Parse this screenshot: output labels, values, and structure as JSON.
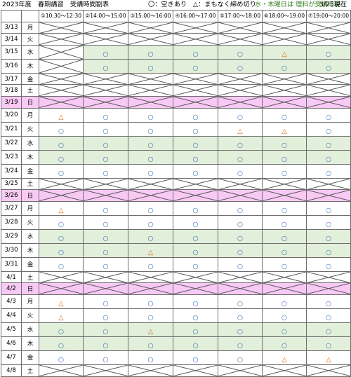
{
  "header": {
    "title": "2023年度　春期講習　受講時間割表",
    "legend_open": "〇：空きあり",
    "legend_few": "△：まもなく締め切り",
    "note": "水・木曜日は 理科が受講可能",
    "asof": "3/25現在"
  },
  "columns": [
    "①10:30～12:30",
    "②14:00～15:00",
    "③15:00～16:00",
    "④16:00～17:00",
    "⑤17:00～18:00",
    "⑥18:00～19:00",
    "⑦19:00～20:00"
  ],
  "colors": {
    "open_circle": "#3d6fb3",
    "few_triangle": "#d26d1c",
    "green_row": "#e2efda",
    "pink_row": "#f8c9f4",
    "note": "#2f7d1c"
  },
  "rows": [
    {
      "date": "3/13",
      "dow": "月",
      "type": "x",
      "cells": [
        "X",
        "X",
        "X",
        "X",
        "X",
        "X",
        "X"
      ]
    },
    {
      "date": "3/14",
      "dow": "火",
      "type": "x",
      "cells": [
        "X",
        "X",
        "X",
        "X",
        "X",
        "X",
        "X"
      ]
    },
    {
      "date": "3/15",
      "dow": "水",
      "type": "green",
      "cells": [
        "X",
        "○",
        "○",
        "○",
        "○",
        "△",
        "○"
      ]
    },
    {
      "date": "3/16",
      "dow": "木",
      "type": "green",
      "cells": [
        "X",
        "○",
        "○",
        "○",
        "○",
        "○",
        "○"
      ]
    },
    {
      "date": "3/17",
      "dow": "金",
      "type": "x",
      "cells": [
        "X",
        "X",
        "X",
        "X",
        "X",
        "X",
        "X"
      ]
    },
    {
      "date": "3/18",
      "dow": "土",
      "type": "x",
      "cells": [
        "X",
        "X",
        "X",
        "X",
        "X",
        "X",
        "X"
      ]
    },
    {
      "date": "3/19",
      "dow": "日",
      "type": "pink",
      "cells": [
        "X",
        "X",
        "X",
        "X",
        "X",
        "X",
        "X"
      ]
    },
    {
      "date": "3/20",
      "dow": "月",
      "type": "normal",
      "cells": [
        "△",
        "○",
        "○",
        "○",
        "○",
        "○",
        "○"
      ]
    },
    {
      "date": "3/21",
      "dow": "火",
      "type": "normal",
      "cells": [
        "○",
        "○",
        "○",
        "○",
        "△",
        "△",
        "○"
      ]
    },
    {
      "date": "3/22",
      "dow": "水",
      "type": "green",
      "cells": [
        "○",
        "○",
        "○",
        "○",
        "○",
        "○",
        "○"
      ]
    },
    {
      "date": "3/23",
      "dow": "木",
      "type": "green",
      "cells": [
        "○",
        "○",
        "○",
        "○",
        "○",
        "○",
        "○"
      ]
    },
    {
      "date": "3/24",
      "dow": "金",
      "type": "normal",
      "cells": [
        "○",
        "○",
        "○",
        "○",
        "○",
        "○",
        "○"
      ]
    },
    {
      "date": "3/25",
      "dow": "土",
      "type": "x",
      "cells": [
        "X",
        "X",
        "X",
        "X",
        "X",
        "X",
        "X"
      ]
    },
    {
      "date": "3/26",
      "dow": "日",
      "type": "pink",
      "cells": [
        "X",
        "X",
        "X",
        "X",
        "X",
        "X",
        "X"
      ]
    },
    {
      "date": "3/27",
      "dow": "月",
      "type": "normal",
      "cells": [
        "△",
        "○",
        "○",
        "○",
        "○",
        "○",
        "○"
      ]
    },
    {
      "date": "3/28",
      "dow": "火",
      "type": "normal",
      "cells": [
        "○",
        "○",
        "○",
        "○",
        "○",
        "○",
        "○"
      ]
    },
    {
      "date": "3/29",
      "dow": "水",
      "type": "green",
      "cells": [
        "○",
        "○",
        "○",
        "○",
        "○",
        "○",
        "○"
      ]
    },
    {
      "date": "3/30",
      "dow": "木",
      "type": "green",
      "cells": [
        "○",
        "○",
        "△",
        "○",
        "○",
        "○",
        "○"
      ]
    },
    {
      "date": "3/31",
      "dow": "金",
      "type": "normal",
      "cells": [
        "○",
        "○",
        "○",
        "○",
        "○",
        "○",
        "○"
      ]
    },
    {
      "date": "4/1",
      "dow": "土",
      "type": "x",
      "cells": [
        "X",
        "X",
        "X",
        "X",
        "X",
        "X",
        "X"
      ]
    },
    {
      "date": "4/2",
      "dow": "日",
      "type": "pink",
      "cells": [
        "X",
        "X",
        "X",
        "X",
        "X",
        "X",
        "X"
      ]
    },
    {
      "date": "4/3",
      "dow": "月",
      "type": "normal",
      "cells": [
        "△",
        "○",
        "○",
        "○",
        "○",
        "○",
        "○"
      ]
    },
    {
      "date": "4/4",
      "dow": "火",
      "type": "normal",
      "cells": [
        "△",
        "○",
        "○",
        "○",
        "○",
        "○",
        "○"
      ]
    },
    {
      "date": "4/5",
      "dow": "水",
      "type": "green",
      "cells": [
        "○",
        "○",
        "△",
        "○",
        "○",
        "○",
        "○"
      ]
    },
    {
      "date": "4/6",
      "dow": "木",
      "type": "green",
      "cells": [
        "○",
        "○",
        "○",
        "○",
        "○",
        "○",
        "○"
      ]
    },
    {
      "date": "4/7",
      "dow": "金",
      "type": "normal",
      "cells": [
        "○",
        "○",
        "○",
        "○",
        "○",
        "△",
        "△"
      ]
    },
    {
      "date": "4/8",
      "dow": "土",
      "type": "x",
      "cells": [
        "X",
        "X",
        "X",
        "X",
        "X",
        "X",
        "X"
      ]
    }
  ]
}
